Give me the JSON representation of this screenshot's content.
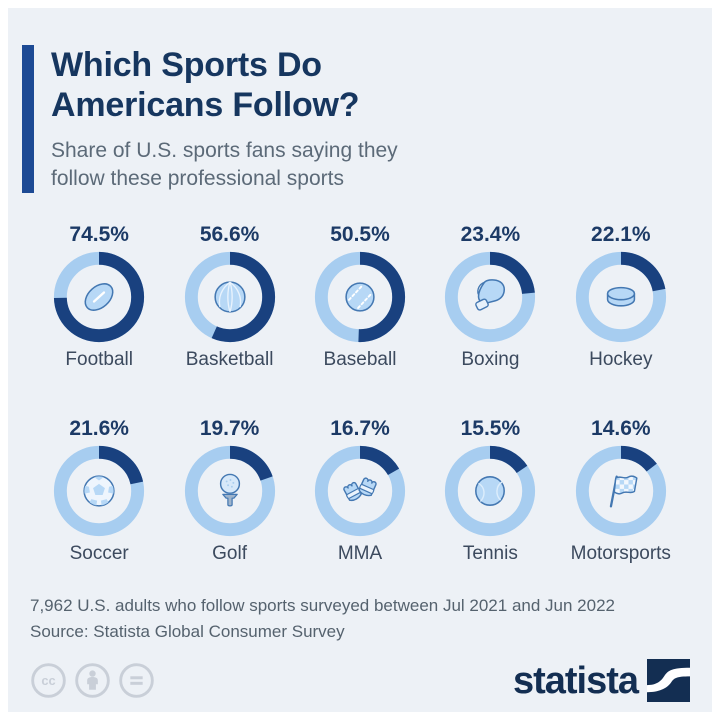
{
  "header": {
    "title_line1": "Which Sports Do",
    "title_line2": "Americans Follow?",
    "subtitle_line1": "Share of U.S. sports fans saying they",
    "subtitle_line2": "follow these professional sports"
  },
  "chart_data": {
    "type": "pie",
    "variant": "donut-grid",
    "title": "Which Sports Do Americans Follow?",
    "subtitle": "Share of U.S. sports fans saying they follow these professional sports",
    "unit": "%",
    "items": [
      {
        "label": "Football",
        "value": 74.5,
        "display": "74.5%",
        "icon": "football-icon"
      },
      {
        "label": "Basketball",
        "value": 56.6,
        "display": "56.6%",
        "icon": "basketball-icon"
      },
      {
        "label": "Baseball",
        "value": 50.5,
        "display": "50.5%",
        "icon": "baseball-icon"
      },
      {
        "label": "Boxing",
        "value": 23.4,
        "display": "23.4%",
        "icon": "boxing-glove-icon"
      },
      {
        "label": "Hockey",
        "value": 22.1,
        "display": "22.1%",
        "icon": "hockey-puck-icon"
      },
      {
        "label": "Soccer",
        "value": 21.6,
        "display": "21.6%",
        "icon": "soccer-ball-icon"
      },
      {
        "label": "Golf",
        "value": 19.7,
        "display": "19.7%",
        "icon": "golf-ball-icon"
      },
      {
        "label": "MMA",
        "value": 16.7,
        "display": "16.7%",
        "icon": "mma-gloves-icon"
      },
      {
        "label": "Tennis",
        "value": 15.5,
        "display": "15.5%",
        "icon": "tennis-ball-icon"
      },
      {
        "label": "Motorsports",
        "value": 14.6,
        "display": "14.6%",
        "icon": "checkered-flag-icon"
      }
    ],
    "colors": {
      "arc": "#19417f",
      "track": "#a7cdf0",
      "icon_fill": "#b7d8f6",
      "icon_stroke": "#4478b2",
      "accent_bar": "#1d4a94",
      "card_background": "#edf1f6"
    }
  },
  "footer": {
    "note": "7,962 U.S. adults who follow sports surveyed between Jul 2021 and Jun 2022",
    "source": "Source: Statista Global Consumer Survey",
    "logo_text": "statista"
  }
}
